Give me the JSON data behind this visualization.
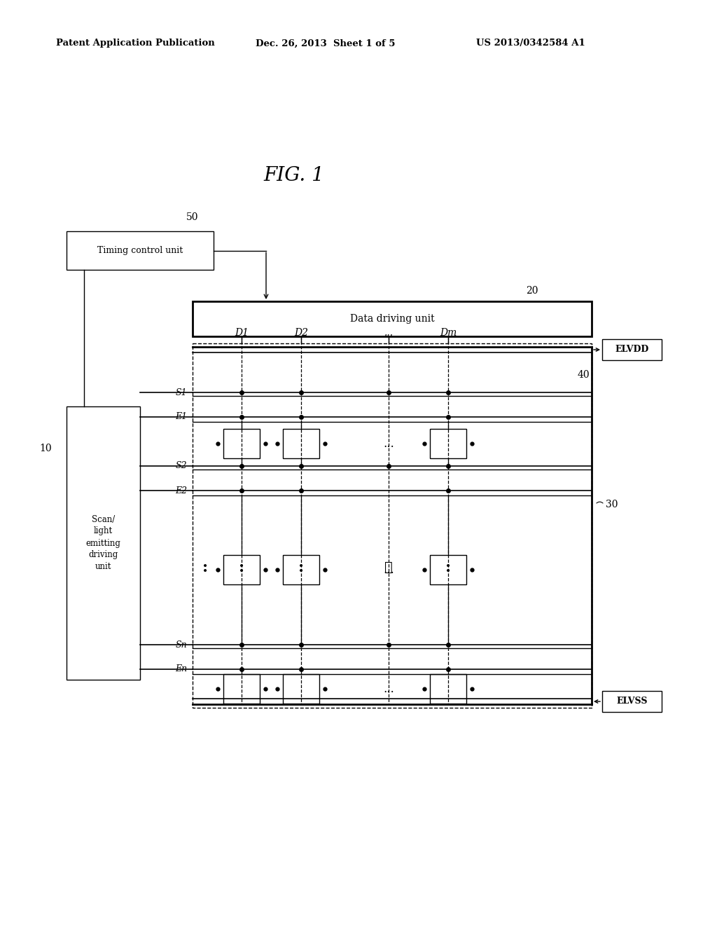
{
  "bg_color": "#ffffff",
  "fig_width": 10.24,
  "fig_height": 13.2,
  "dpi": 100,
  "header_text": "Patent Application Publication",
  "header_date": "Dec. 26, 2013  Sheet 1 of 5",
  "header_patent": "US 2013/0342584 A1",
  "fig_title": "FIG. 1",
  "label_50": "50",
  "label_20": "20",
  "label_10": "10",
  "label_40": "40",
  "label_30": "30",
  "timing_ctrl": "Timing control unit",
  "data_driving": "Data driving unit",
  "scan_unit_lines": [
    "Scan/",
    "light",
    "emitting",
    "driving",
    "unit"
  ],
  "elvdd": "ELVDD",
  "elvss": "ELVSS",
  "col_labels": [
    "D1",
    "D2",
    "...",
    "Dm"
  ],
  "row_labels": [
    "S1",
    "E1",
    "S2",
    "E2",
    "Sn",
    "En"
  ]
}
